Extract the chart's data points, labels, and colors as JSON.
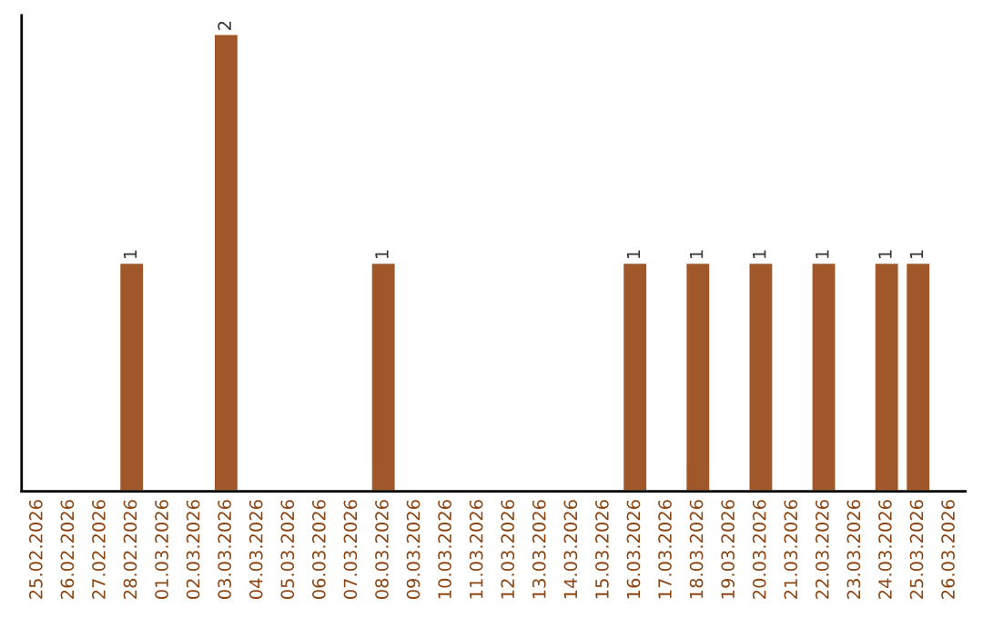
{
  "chart_data": {
    "type": "bar",
    "categories": [
      "25.02.2026",
      "26.02.2026",
      "27.02.2026",
      "28.02.2026",
      "01.03.2026",
      "02.03.2026",
      "03.03.2026",
      "04.03.2026",
      "05.03.2026",
      "06.03.2026",
      "07.03.2026",
      "08.03.2026",
      "09.03.2026",
      "10.03.2026",
      "11.03.2026",
      "12.03.2026",
      "13.03.2026",
      "14.03.2026",
      "15.03.2026",
      "16.03.2026",
      "17.03.2026",
      "18.03.2026",
      "19.03.2026",
      "20.03.2026",
      "21.03.2026",
      "22.03.2026",
      "23.03.2026",
      "24.03.2026",
      "25.03.2026",
      "26.03.2026"
    ],
    "values": [
      null,
      null,
      null,
      1,
      null,
      null,
      2,
      null,
      null,
      null,
      null,
      1,
      null,
      null,
      null,
      null,
      null,
      null,
      null,
      1,
      null,
      1,
      null,
      1,
      null,
      1,
      null,
      1,
      1,
      null
    ],
    "color": "#a0582a",
    "value_labels": [
      null,
      null,
      null,
      "1",
      null,
      null,
      "2",
      null,
      null,
      null,
      null,
      "1",
      null,
      null,
      null,
      null,
      null,
      null,
      null,
      "1",
      null,
      "1",
      null,
      "1",
      null,
      "1",
      null,
      "1",
      "1",
      null
    ],
    "grid": false,
    "legend": false
  }
}
